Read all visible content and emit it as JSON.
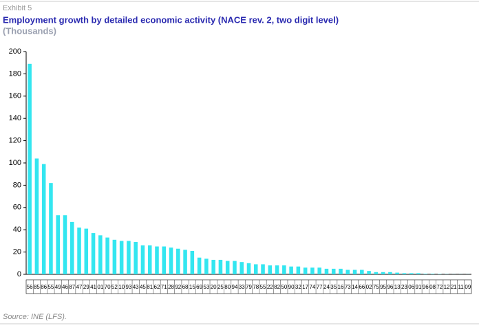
{
  "chart_data": {
    "type": "bar",
    "label": "Exhibit 5",
    "title": "Employment growth by detailed economic activity (NACE rev. 2, two digit level)",
    "subtitle": "(Thousands)",
    "source": "Source: INE (LFS).",
    "color": "#33e6f0",
    "categories": [
      "56",
      "85",
      "86",
      "55",
      "49",
      "46",
      "87",
      "47",
      "29",
      "41",
      "01",
      "70",
      "52",
      "10",
      "93",
      "43",
      "45",
      "81",
      "62",
      "71",
      "28",
      "92",
      "68",
      "15",
      "69",
      "53",
      "20",
      "25",
      "80",
      "94",
      "33",
      "79",
      "78",
      "55",
      "22",
      "82",
      "50",
      "90",
      "32",
      "17",
      "74",
      "77",
      "24",
      "35",
      "16",
      "73",
      "14",
      "66",
      "02",
      "75",
      "95",
      "96",
      "13",
      "23",
      "06",
      "91",
      "96",
      "08",
      "72",
      "12",
      "21",
      "11",
      "09"
    ],
    "values": [
      189,
      104,
      99,
      82,
      53,
      53,
      47,
      42,
      41,
      37,
      35,
      33,
      31,
      30,
      30,
      29,
      26,
      26,
      25,
      25,
      24,
      23,
      22,
      21,
      15,
      14,
      13,
      13,
      12,
      12,
      11,
      10,
      9,
      9,
      8,
      8,
      8,
      7,
      7,
      6,
      6,
      6,
      5,
      5,
      5,
      4,
      4,
      4,
      3,
      2,
      2,
      2,
      1.5,
      1,
      1,
      1,
      0.5,
      0.5,
      0.3,
      0.2,
      0.1,
      0.1,
      0.1
    ],
    "ylim": [
      0,
      200
    ],
    "yticks": [
      0,
      20,
      40,
      60,
      80,
      100,
      120,
      140,
      160,
      180,
      200
    ]
  }
}
